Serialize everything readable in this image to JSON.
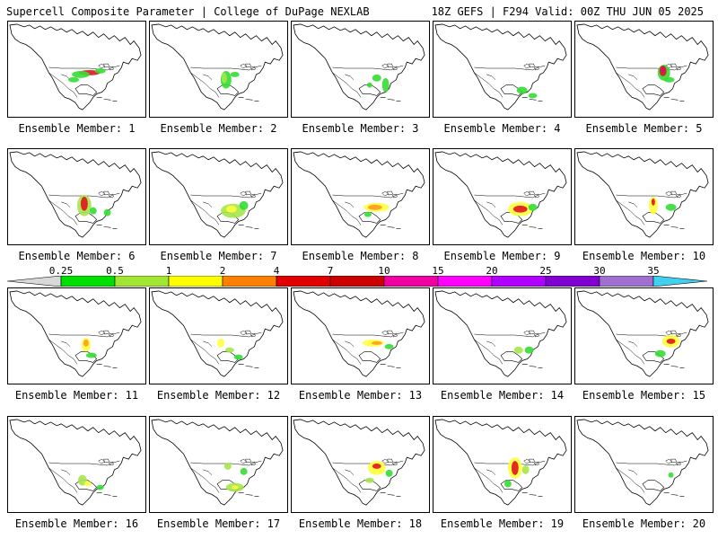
{
  "header": {
    "title": "Supercell Composite Parameter | College of DuPage NEXLAB",
    "run_info": "18Z GEFS | F294 Valid: 00Z THU JUN 05 2025"
  },
  "panels": [
    {
      "label": "Ensemble Member: 1"
    },
    {
      "label": "Ensemble Member: 2"
    },
    {
      "label": "Ensemble Member: 3"
    },
    {
      "label": "Ensemble Member: 4"
    },
    {
      "label": "Ensemble Member: 5"
    },
    {
      "label": "Ensemble Member: 6"
    },
    {
      "label": "Ensemble Member: 7"
    },
    {
      "label": "Ensemble Member: 8"
    },
    {
      "label": "Ensemble Member: 9"
    },
    {
      "label": "Ensemble Member: 10"
    },
    {
      "label": "Ensemble Member: 11"
    },
    {
      "label": "Ensemble Member: 12"
    },
    {
      "label": "Ensemble Member: 13"
    },
    {
      "label": "Ensemble Member: 14"
    },
    {
      "label": "Ensemble Member: 15"
    },
    {
      "label": "Ensemble Member: 16"
    },
    {
      "label": "Ensemble Member: 17"
    },
    {
      "label": "Ensemble Member: 18"
    },
    {
      "label": "Ensemble Member: 19"
    },
    {
      "label": "Ensemble Member: 20"
    }
  ],
  "colorbar": {
    "labels": [
      "0.25",
      "0.5",
      "1",
      "2",
      "4",
      "7",
      "10",
      "15",
      "20",
      "25",
      "30",
      "35"
    ],
    "colors": [
      "#d9d9d9",
      "#00e000",
      "#a0e632",
      "#fffe00",
      "#ff8000",
      "#e00000",
      "#cc0000",
      "#f000a0",
      "#ff00ff",
      "#b000ff",
      "#8000d0",
      "#a070d0",
      "#40d0f0"
    ]
  },
  "legend_colors": {
    "gray": "#c8c8c8",
    "green": "#33dd33",
    "lime": "#a6e64a",
    "yellow": "#ffff3c",
    "orange": "#ff9a1e",
    "red": "#e0141e",
    "magenta": "#e6008c"
  }
}
